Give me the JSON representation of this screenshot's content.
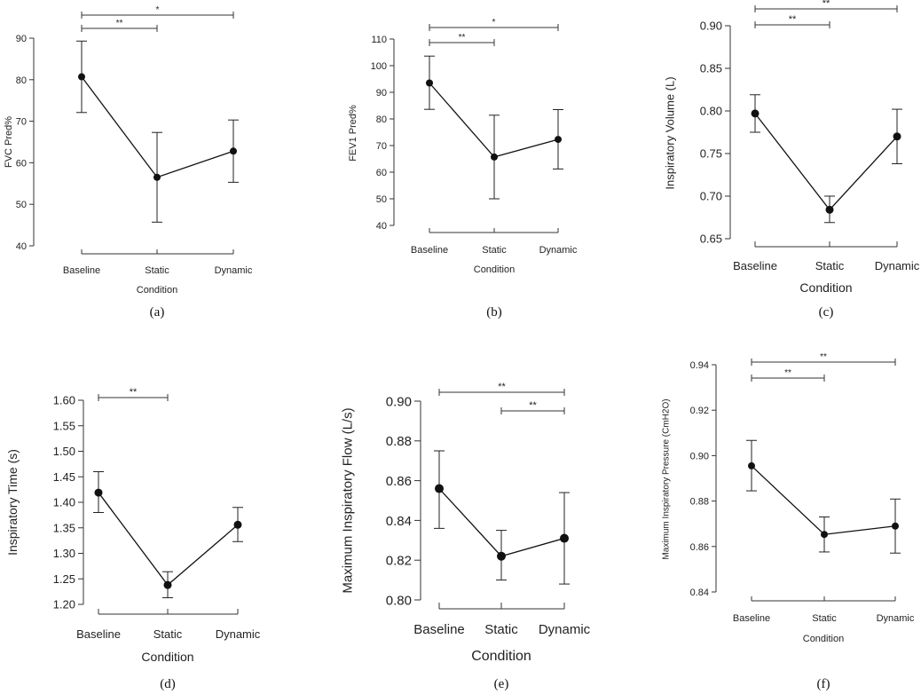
{
  "chart_data": [
    {
      "type": "line",
      "panel_label": "(a)",
      "xlabel": "Condition",
      "ylabel": "FVC Pred%",
      "categories": [
        "Baseline",
        "Static",
        "Dynamic"
      ],
      "values": [
        80.7,
        56.5,
        62.8
      ],
      "error_low": [
        72.1,
        45.7,
        55.3
      ],
      "error_high": [
        89.3,
        67.3,
        70.3
      ],
      "ylim": [
        40,
        90
      ],
      "yticks": [
        "40",
        "50",
        "60",
        "70",
        "80",
        "90"
      ],
      "significance": [
        {
          "from": 0,
          "to": 1,
          "label": "**"
        },
        {
          "from": 0,
          "to": 2,
          "label": "*"
        }
      ]
    },
    {
      "type": "line",
      "panel_label": "(b)",
      "xlabel": "Condition",
      "ylabel": "FEV1 Pred%",
      "categories": [
        "Baseline",
        "Static",
        "Dynamic"
      ],
      "values": [
        93.5,
        65.7,
        72.3
      ],
      "error_low": [
        83.6,
        50.0,
        61.2
      ],
      "error_high": [
        103.6,
        81.4,
        83.5
      ],
      "ylim": [
        40,
        110
      ],
      "yticks": [
        "40",
        "50",
        "60",
        "70",
        "80",
        "90",
        "100",
        "110"
      ],
      "significance": [
        {
          "from": 0,
          "to": 1,
          "label": "**"
        },
        {
          "from": 0,
          "to": 2,
          "label": "*"
        }
      ]
    },
    {
      "type": "line",
      "panel_label": "(c)",
      "xlabel": "Condition",
      "ylabel": "Inspiratory Volume (L)",
      "categories": [
        "Baseline",
        "Static",
        "Dynamic"
      ],
      "values": [
        0.797,
        0.684,
        0.77
      ],
      "error_low": [
        0.775,
        0.669,
        0.738
      ],
      "error_high": [
        0.819,
        0.7,
        0.802
      ],
      "ylim": [
        0.65,
        0.9
      ],
      "yticks": [
        "0.65",
        "0.70",
        "0.75",
        "0.80",
        "0.85",
        "0.90"
      ],
      "significance": [
        {
          "from": 0,
          "to": 1,
          "label": "**"
        },
        {
          "from": 0,
          "to": 2,
          "label": "**"
        }
      ]
    },
    {
      "type": "line",
      "panel_label": "(d)",
      "xlabel": "Condition",
      "ylabel": "Inspiratory Time (s)",
      "categories": [
        "Baseline",
        "Static",
        "Dynamic"
      ],
      "values": [
        1.419,
        1.238,
        1.356
      ],
      "error_low": [
        1.38,
        1.213,
        1.323
      ],
      "error_high": [
        1.46,
        1.264,
        1.39
      ],
      "ylim": [
        1.2,
        1.6
      ],
      "yticks": [
        "1.20",
        "1.25",
        "1.30",
        "1.35",
        "1.40",
        "1.45",
        "1.50",
        "1.55",
        "1.60"
      ],
      "significance": [
        {
          "from": 0,
          "to": 1,
          "label": "**"
        }
      ]
    },
    {
      "type": "line",
      "panel_label": "(e)",
      "xlabel": "Condition",
      "ylabel": "Maximum Inspiratory Flow (L/s)",
      "categories": [
        "Baseline",
        "Static",
        "Dynamic"
      ],
      "values": [
        0.856,
        0.822,
        0.831
      ],
      "error_low": [
        0.836,
        0.81,
        0.808
      ],
      "error_high": [
        0.875,
        0.835,
        0.854
      ],
      "ylim": [
        0.8,
        0.9
      ],
      "yticks": [
        "0.80",
        "0.82",
        "0.84",
        "0.86",
        "0.88",
        "0.90"
      ],
      "significance": [
        {
          "from": 0,
          "to": 2,
          "label": "**"
        },
        {
          "from": 1,
          "to": 2,
          "label": "**"
        }
      ]
    },
    {
      "type": "line",
      "panel_label": "(f)",
      "xlabel": "Condition",
      "ylabel": "Maximum Inspiratory Pressure (CmH2O)",
      "categories": [
        "Baseline",
        "Static",
        "Dynamic"
      ],
      "values": [
        0.8955,
        0.8653,
        0.869
      ],
      "error_low": [
        0.8845,
        0.8576,
        0.8571
      ],
      "error_high": [
        0.9067,
        0.873,
        0.8809
      ],
      "ylim": [
        0.84,
        0.94
      ],
      "yticks": [
        "0.84",
        "0.86",
        "0.88",
        "0.90",
        "0.92",
        "0.94"
      ],
      "significance": [
        {
          "from": 0,
          "to": 1,
          "label": "**"
        },
        {
          "from": 0,
          "to": 2,
          "label": "**"
        }
      ]
    }
  ]
}
